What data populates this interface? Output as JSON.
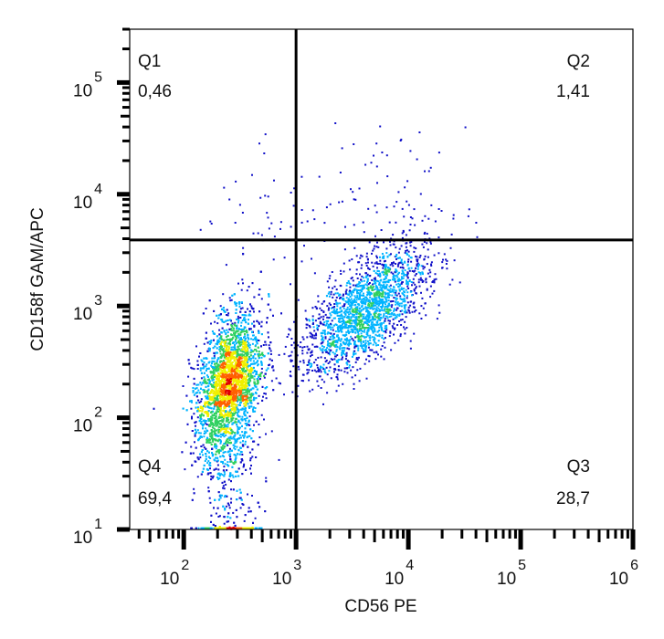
{
  "chart_data": {
    "type": "scatter",
    "subtype": "flow-cytometry density dot plot",
    "xlabel": "CD56 PE",
    "ylabel": "CD158f  GAM/APC",
    "x_scale": "log",
    "y_scale": "log",
    "xlim": [
      33,
      1000000
    ],
    "ylim": [
      10,
      300000
    ],
    "x_ticks": [
      {
        "base": "10",
        "exp": "2",
        "value": 100
      },
      {
        "base": "10",
        "exp": "3",
        "value": 1000
      },
      {
        "base": "10",
        "exp": "4",
        "value": 10000
      },
      {
        "base": "10",
        "exp": "5",
        "value": 100000
      },
      {
        "base": "10",
        "exp": "6",
        "value": 1000000
      }
    ],
    "y_ticks": [
      {
        "base": "10",
        "exp": "1",
        "value": 10
      },
      {
        "base": "10",
        "exp": "2",
        "value": 100
      },
      {
        "base": "10",
        "exp": "3",
        "value": 1000
      },
      {
        "base": "10",
        "exp": "4",
        "value": 10000
      },
      {
        "base": "10",
        "exp": "5",
        "value": 100000
      }
    ],
    "quadrant_gate": {
      "x": 1000,
      "y": 3900
    },
    "quadrants": [
      {
        "name": "Q1",
        "percent": "0,46"
      },
      {
        "name": "Q2",
        "percent": "1,41"
      },
      {
        "name": "Q3",
        "percent": "28,7"
      },
      {
        "name": "Q4",
        "percent": "69,4"
      }
    ],
    "populations": [
      {
        "quadrant": "Q4",
        "center_x": 250,
        "center_y": 200,
        "fraction": 0.694
      },
      {
        "quadrant": "Q3",
        "center_x": 4000,
        "center_y": 900,
        "fraction": 0.287
      },
      {
        "quadrant": "Q2",
        "center_x": 5000,
        "center_y": 8000,
        "fraction": 0.0141
      },
      {
        "quadrant": "Q1",
        "center_x": 400,
        "center_y": 7000,
        "fraction": 0.0046
      }
    ],
    "density_colors": [
      "#1010c8",
      "#00b4ff",
      "#30d060",
      "#f0f000",
      "#ff6000",
      "#e00000"
    ],
    "grid": false,
    "legend": "none"
  }
}
